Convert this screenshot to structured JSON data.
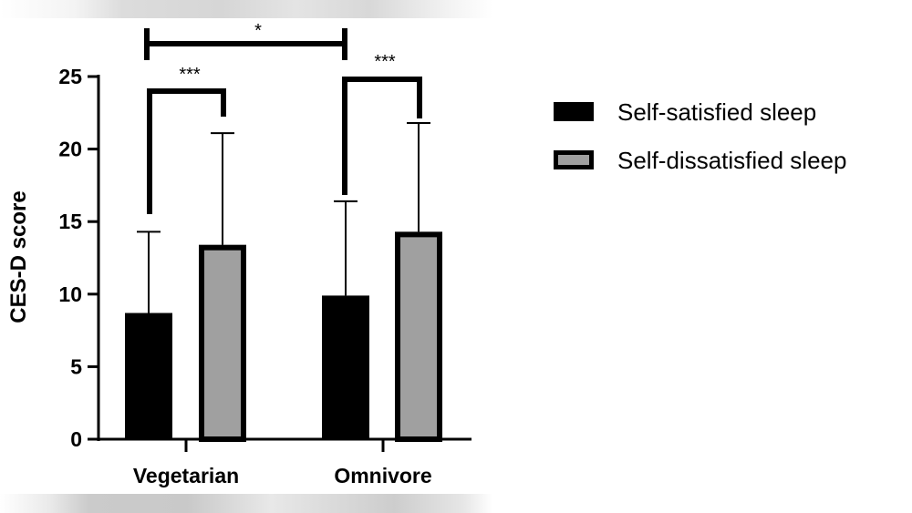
{
  "chart_data": {
    "type": "bar",
    "title": "",
    "xlabel": "",
    "ylabel": "CES-D score",
    "ylim": [
      0,
      25
    ],
    "yticks": [
      0,
      5,
      10,
      15,
      20,
      25
    ],
    "ytick_labels": [
      "0",
      "5",
      "10",
      "15",
      "20",
      "25"
    ],
    "grid": false,
    "legend_position": "right",
    "categories": [
      "Vegetarian",
      "Omnivore"
    ],
    "series": [
      {
        "name": "Self-satisfied sleep",
        "color": "#000000",
        "values": [
          8.7,
          9.9
        ],
        "error_upper": [
          14.3,
          16.4
        ]
      },
      {
        "name": "Self-dissatisfied sleep",
        "color": "#a0a0a0",
        "edge_color": "#000000",
        "values": [
          13.4,
          14.3
        ],
        "error_upper": [
          21.1,
          21.8
        ]
      }
    ],
    "annotations": [
      {
        "label": "*",
        "between": [
          "Vegetarian: Self-satisfied sleep",
          "Omnivore: Self-satisfied sleep"
        ]
      },
      {
        "label": "***",
        "between": [
          "Vegetarian: Self-satisfied sleep",
          "Vegetarian: Self-dissatisfied sleep"
        ]
      },
      {
        "label": "***",
        "between": [
          "Omnivore: Self-satisfied sleep",
          "Omnivore: Self-dissatisfied sleep"
        ]
      }
    ]
  },
  "legend": {
    "items": [
      {
        "label": "Self-satisfied sleep",
        "fill": "#000000",
        "border": "#000000"
      },
      {
        "label": "Self-dissatisfied sleep",
        "fill": "#a0a0a0",
        "border": "#000000"
      }
    ]
  }
}
